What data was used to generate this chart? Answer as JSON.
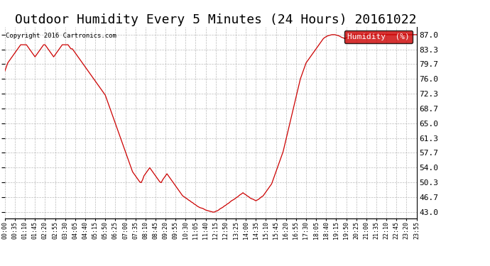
{
  "title": "Outdoor Humidity Every 5 Minutes (24 Hours) 20161022",
  "copyright": "Copyright 2016 Cartronics.com",
  "legend_label": "Humidity  (%)",
  "line_color": "#cc0000",
  "legend_bg": "#cc0000",
  "legend_text_color": "#ffffff",
  "background_color": "#ffffff",
  "grid_color": "#aaaaaa",
  "title_fontsize": 13,
  "ylabel_values": [
    43.0,
    46.7,
    50.3,
    54.0,
    57.7,
    61.3,
    65.0,
    68.7,
    72.3,
    76.0,
    79.7,
    83.3,
    87.0
  ],
  "ylim": [
    41.5,
    89.0
  ],
  "humidity_data": [
    78.0,
    79.0,
    80.0,
    80.5,
    81.0,
    81.5,
    82.0,
    82.5,
    83.0,
    83.5,
    84.0,
    84.5,
    84.5,
    84.5,
    84.5,
    84.5,
    84.0,
    83.5,
    83.0,
    82.5,
    82.0,
    81.5,
    82.0,
    82.5,
    83.0,
    83.5,
    84.0,
    84.5,
    84.5,
    84.0,
    83.5,
    83.0,
    82.5,
    82.0,
    81.5,
    82.0,
    82.5,
    83.0,
    83.5,
    84.0,
    84.5,
    84.5,
    84.5,
    84.5,
    84.5,
    84.0,
    83.5,
    83.5,
    83.0,
    82.5,
    82.0,
    81.5,
    81.0,
    80.5,
    80.0,
    79.5,
    79.0,
    78.5,
    78.0,
    77.5,
    77.0,
    76.5,
    76.0,
    75.5,
    75.0,
    74.5,
    74.0,
    73.5,
    73.0,
    72.5,
    72.0,
    71.0,
    70.0,
    69.0,
    68.0,
    67.0,
    66.0,
    65.0,
    64.0,
    63.0,
    62.0,
    61.0,
    60.0,
    59.0,
    58.0,
    57.0,
    56.0,
    55.0,
    54.0,
    53.0,
    52.5,
    52.0,
    51.5,
    51.0,
    50.5,
    50.3,
    51.0,
    52.0,
    52.5,
    53.0,
    53.5,
    54.0,
    53.5,
    53.0,
    52.5,
    52.0,
    51.5,
    51.0,
    50.5,
    50.3,
    51.0,
    51.5,
    52.0,
    52.5,
    52.0,
    51.5,
    51.0,
    50.5,
    50.0,
    49.5,
    49.0,
    48.5,
    48.0,
    47.5,
    47.0,
    46.8,
    46.5,
    46.3,
    46.0,
    45.8,
    45.5,
    45.3,
    45.0,
    44.8,
    44.5,
    44.3,
    44.1,
    44.0,
    43.9,
    43.7,
    43.5,
    43.4,
    43.3,
    43.2,
    43.1,
    43.0,
    43.0,
    43.2,
    43.3,
    43.5,
    43.8,
    44.0,
    44.2,
    44.5,
    44.7,
    45.0,
    45.2,
    45.5,
    45.8,
    46.0,
    46.2,
    46.5,
    46.7,
    47.0,
    47.3,
    47.5,
    47.8,
    47.5,
    47.3,
    47.0,
    46.8,
    46.5,
    46.3,
    46.2,
    46.0,
    45.8,
    46.0,
    46.2,
    46.5,
    46.8,
    47.0,
    47.5,
    48.0,
    48.5,
    49.0,
    49.5,
    50.0,
    51.0,
    52.0,
    53.0,
    54.0,
    55.0,
    56.0,
    57.0,
    58.0,
    59.5,
    61.0,
    62.5,
    64.0,
    65.5,
    67.0,
    68.5,
    70.0,
    71.5,
    73.0,
    74.5,
    76.0,
    77.0,
    78.0,
    79.0,
    80.0,
    80.5,
    81.0,
    81.5,
    82.0,
    82.5,
    83.0,
    83.5,
    84.0,
    84.5,
    85.0,
    85.5,
    86.0,
    86.3,
    86.5,
    86.7,
    86.8,
    86.9,
    87.0,
    87.0,
    87.0,
    86.9,
    86.8,
    86.7,
    86.5,
    86.3,
    86.2,
    86.0,
    86.2,
    86.4,
    86.5,
    86.7,
    86.8,
    87.0,
    87.0,
    87.0,
    87.0,
    87.0,
    87.0,
    87.0,
    87.0,
    87.0,
    87.0,
    87.0,
    87.0,
    87.0,
    87.0,
    87.0,
    87.0,
    87.0,
    87.0,
    87.0,
    87.0,
    87.0,
    87.0,
    87.0,
    87.0,
    87.0,
    87.0,
    87.0,
    87.0,
    87.0,
    87.0,
    87.0,
    87.0,
    87.0,
    87.0,
    87.0,
    87.0,
    87.0,
    87.0,
    87.0,
    87.0,
    87.0,
    87.0,
    87.0,
    87.0,
    87.0
  ],
  "xtick_labels": [
    "00:00",
    "00:35",
    "01:10",
    "01:45",
    "02:20",
    "02:55",
    "03:30",
    "04:05",
    "04:40",
    "05:15",
    "05:50",
    "06:25",
    "07:00",
    "07:35",
    "08:10",
    "08:45",
    "09:20",
    "09:55",
    "10:30",
    "11:05",
    "11:40",
    "12:15",
    "12:50",
    "13:25",
    "14:00",
    "14:35",
    "15:10",
    "15:45",
    "16:20",
    "16:55",
    "17:30",
    "18:05",
    "18:40",
    "19:15",
    "19:50",
    "20:25",
    "21:00",
    "21:35",
    "22:10",
    "22:45",
    "23:20",
    "23:55"
  ]
}
